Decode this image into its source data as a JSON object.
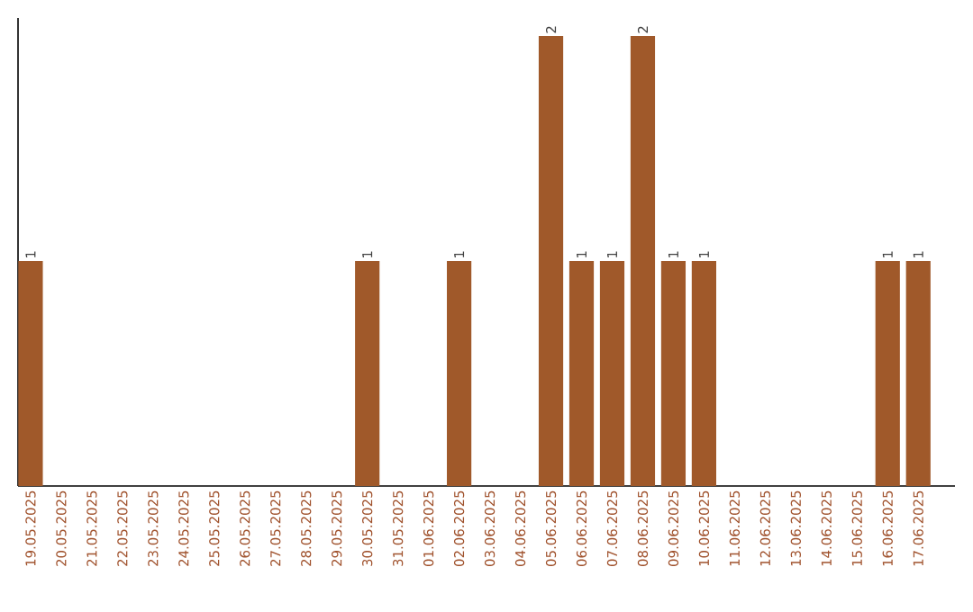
{
  "chart_data": {
    "type": "bar",
    "categories": [
      "19.05.2025",
      "20.05.2025",
      "21.05.2025",
      "22.05.2025",
      "23.05.2025",
      "24.05.2025",
      "25.05.2025",
      "26.05.2025",
      "27.05.2025",
      "28.05.2025",
      "29.05.2025",
      "30.05.2025",
      "31.05.2025",
      "01.06.2025",
      "02.06.2025",
      "03.06.2025",
      "04.06.2025",
      "05.06.2025",
      "06.06.2025",
      "07.06.2025",
      "08.06.2025",
      "09.06.2025",
      "10.06.2025",
      "11.06.2025",
      "12.06.2025",
      "13.06.2025",
      "14.06.2025",
      "15.06.2025",
      "16.06.2025",
      "17.06.2025"
    ],
    "values": [
      1,
      0,
      0,
      0,
      0,
      0,
      0,
      0,
      0,
      0,
      0,
      1,
      0,
      0,
      1,
      0,
      0,
      2,
      1,
      1,
      2,
      1,
      1,
      0,
      0,
      0,
      0,
      0,
      1,
      1
    ],
    "value_labels": [
      "1",
      null,
      null,
      null,
      null,
      null,
      null,
      null,
      null,
      null,
      null,
      "1",
      null,
      null,
      "1",
      null,
      null,
      "2",
      "1",
      "1",
      "2",
      "1",
      "1",
      null,
      null,
      null,
      null,
      null,
      "1",
      "1"
    ],
    "color": "#a0592a",
    "ylim": [
      0,
      2.08
    ],
    "tick_labels": "x"
  }
}
